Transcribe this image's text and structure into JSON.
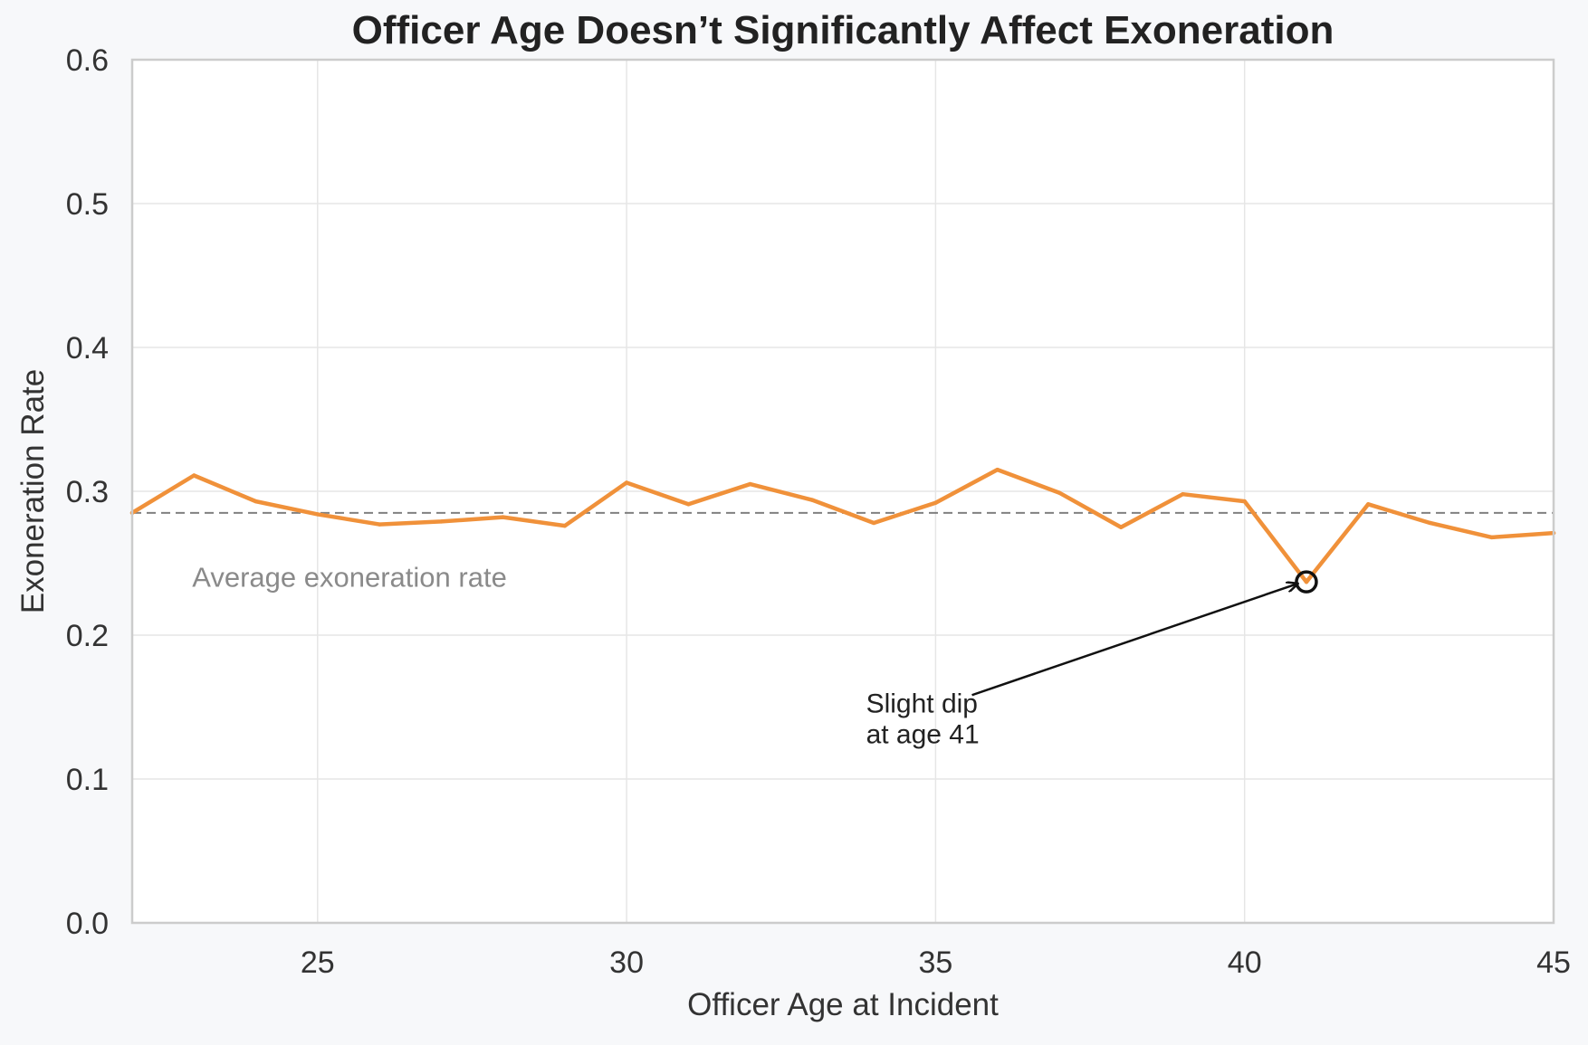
{
  "chart_data": {
    "type": "line",
    "title": "Officer Age Doesn’t Significantly Affect Exoneration",
    "xlabel": "Officer Age at Incident",
    "ylabel": "Exoneration Rate",
    "xlim": [
      22,
      45
    ],
    "ylim": [
      0.0,
      0.6
    ],
    "x_ticks": [
      25,
      30,
      35,
      40,
      45
    ],
    "y_ticks": [
      0.0,
      0.1,
      0.2,
      0.3,
      0.4,
      0.5,
      0.6
    ],
    "x_tick_labels": [
      "25",
      "30",
      "35",
      "40",
      "45"
    ],
    "y_tick_labels": [
      "0.0",
      "0.1",
      "0.2",
      "0.3",
      "0.4",
      "0.5",
      "0.6"
    ],
    "grid": true,
    "legend": "none",
    "series": [
      {
        "color": "#f0913a",
        "x": [
          22,
          23,
          24,
          25,
          26,
          27,
          28,
          29,
          30,
          31,
          32,
          33,
          34,
          35,
          36,
          37,
          38,
          39,
          40,
          41,
          42,
          43,
          44,
          45
        ],
        "values": [
          0.285,
          0.311,
          0.293,
          0.284,
          0.277,
          0.279,
          0.282,
          0.276,
          0.306,
          0.291,
          0.305,
          0.294,
          0.278,
          0.292,
          0.315,
          0.299,
          0.275,
          0.298,
          0.293,
          0.237,
          0.291,
          0.278,
          0.268,
          0.271
        ]
      }
    ],
    "reference_line": {
      "y": 0.285,
      "color": "#808080",
      "style": "dashed",
      "label": "Average exoneration rate",
      "label_x": 23,
      "label_y": 0.24
    },
    "annotation": {
      "line1": "Slight dip",
      "line2": "at age 41",
      "point_x": 41,
      "point_y": 0.237,
      "text_x": 34.9,
      "text_y": 0.125
    }
  }
}
